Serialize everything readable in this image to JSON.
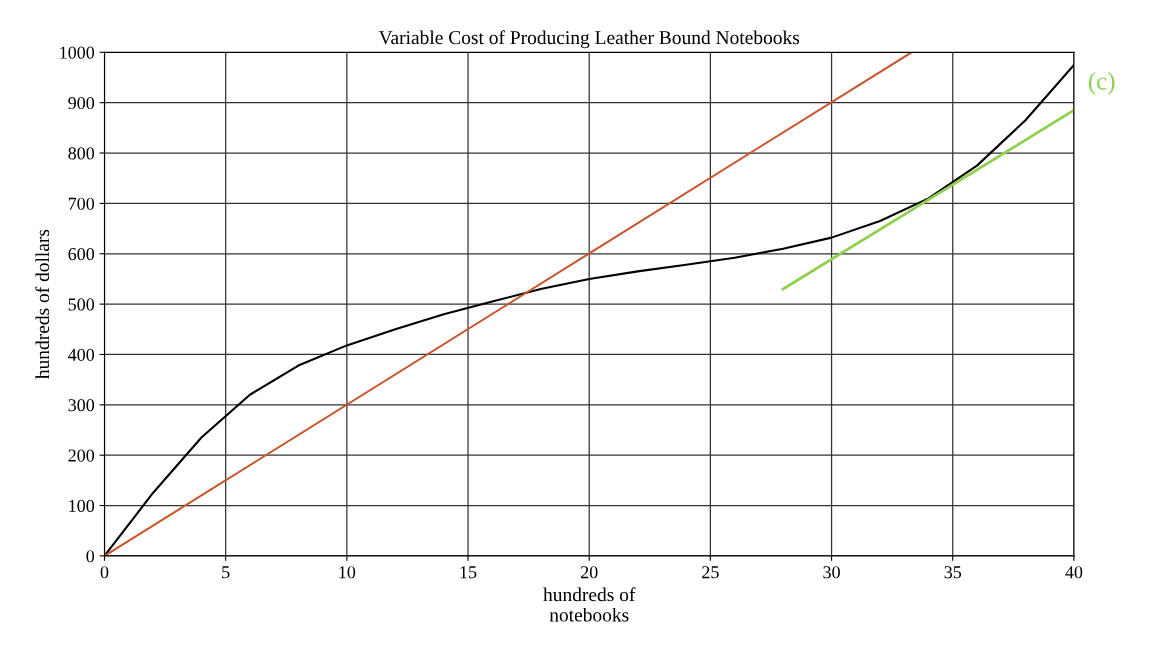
{
  "chart_data": {
    "type": "line",
    "title": "Variable Cost of Producing Leather Bound Notebooks",
    "xlabel": "hundreds of\nnotebooks",
    "ylabel": "hundreds of dollars",
    "series": [
      {
        "color": "#000000",
        "x": [
          0,
          2,
          4,
          6,
          8,
          10,
          12,
          14,
          16,
          18,
          20,
          22,
          24,
          26,
          28,
          30,
          32,
          34,
          36,
          38,
          40
        ],
        "values": [
          0,
          125,
          235,
          320,
          378,
          418,
          450,
          480,
          505,
          530,
          550,
          565,
          578,
          592,
          610,
          632,
          665,
          710,
          775,
          865,
          975
        ]
      },
      {
        "color": "#c8562a",
        "x": [
          0,
          33.3
        ],
        "values": [
          0,
          1000
        ]
      },
      {
        "color": "#8fd14f",
        "x": [
          28,
          40
        ],
        "values": [
          530,
          885
        ]
      }
    ],
    "annotations": [
      {
        "text": "(c)",
        "x": 40,
        "y": 885
      }
    ],
    "xlim": [
      0,
      40
    ],
    "ylim": [
      0,
      1000
    ],
    "xticks": [
      0,
      5,
      10,
      15,
      20,
      25,
      30,
      35,
      40
    ],
    "yticks": [
      0,
      100,
      200,
      300,
      400,
      500,
      600,
      700,
      800,
      900,
      1000
    ],
    "grid": true,
    "legend": false,
    "marker": "none",
    "line_style": "solid"
  }
}
